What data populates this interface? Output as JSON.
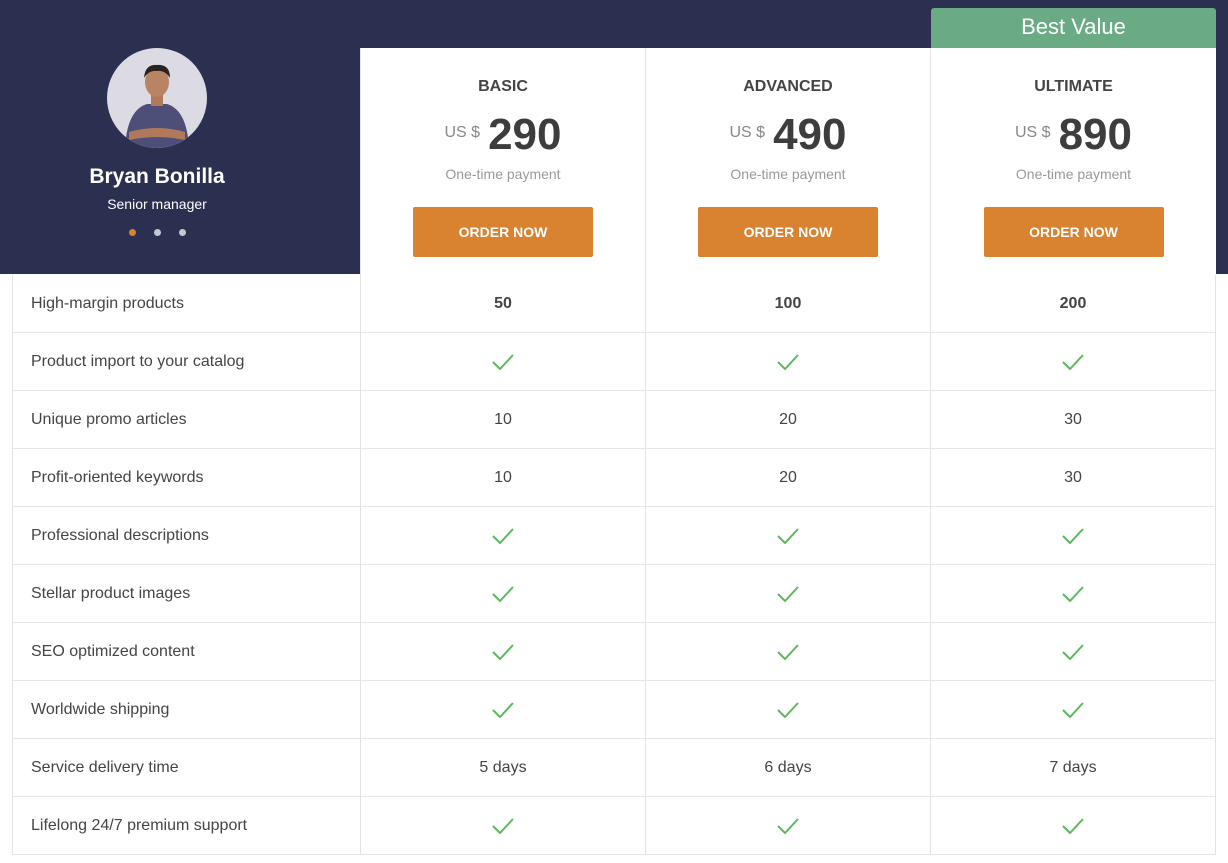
{
  "profile": {
    "name": "Bryan Bonilla",
    "role": "Senior manager",
    "carousel_dots": 3,
    "active_dot": 0
  },
  "badge": "Best Value",
  "colors": {
    "header_bg": "#2b3050",
    "accent": "#d9822f",
    "badge": "#6aab86",
    "check": "#5cb85c"
  },
  "plans": [
    {
      "name": "BASIC",
      "currency": "US $",
      "price": "290",
      "payment": "One-time payment",
      "button": "ORDER NOW"
    },
    {
      "name": "ADVANCED",
      "currency": "US $",
      "price": "490",
      "payment": "One-time payment",
      "button": "ORDER NOW"
    },
    {
      "name": "ULTIMATE",
      "currency": "US $",
      "price": "890",
      "payment": "One-time payment",
      "button": "ORDER NOW"
    }
  ],
  "features": [
    {
      "label": "High-margin products",
      "values": [
        "50",
        "100",
        "200"
      ],
      "bold": true
    },
    {
      "label": "Product import to your catalog",
      "values": [
        "check",
        "check",
        "check"
      ]
    },
    {
      "label": "Unique promo articles",
      "values": [
        "10",
        "20",
        "30"
      ]
    },
    {
      "label": "Profit-oriented keywords",
      "values": [
        "10",
        "20",
        "30"
      ]
    },
    {
      "label": "Professional descriptions",
      "values": [
        "check",
        "check",
        "check"
      ]
    },
    {
      "label": "Stellar product images",
      "values": [
        "check",
        "check",
        "check"
      ]
    },
    {
      "label": "SEO optimized content",
      "values": [
        "check",
        "check",
        "check"
      ]
    },
    {
      "label": "Worldwide shipping",
      "values": [
        "check",
        "check",
        "check"
      ]
    },
    {
      "label": "Service delivery time",
      "values": [
        "5 days",
        "6 days",
        "7 days"
      ]
    },
    {
      "label": "Lifelong 24/7 premium support",
      "values": [
        "check",
        "check",
        "check"
      ]
    }
  ]
}
